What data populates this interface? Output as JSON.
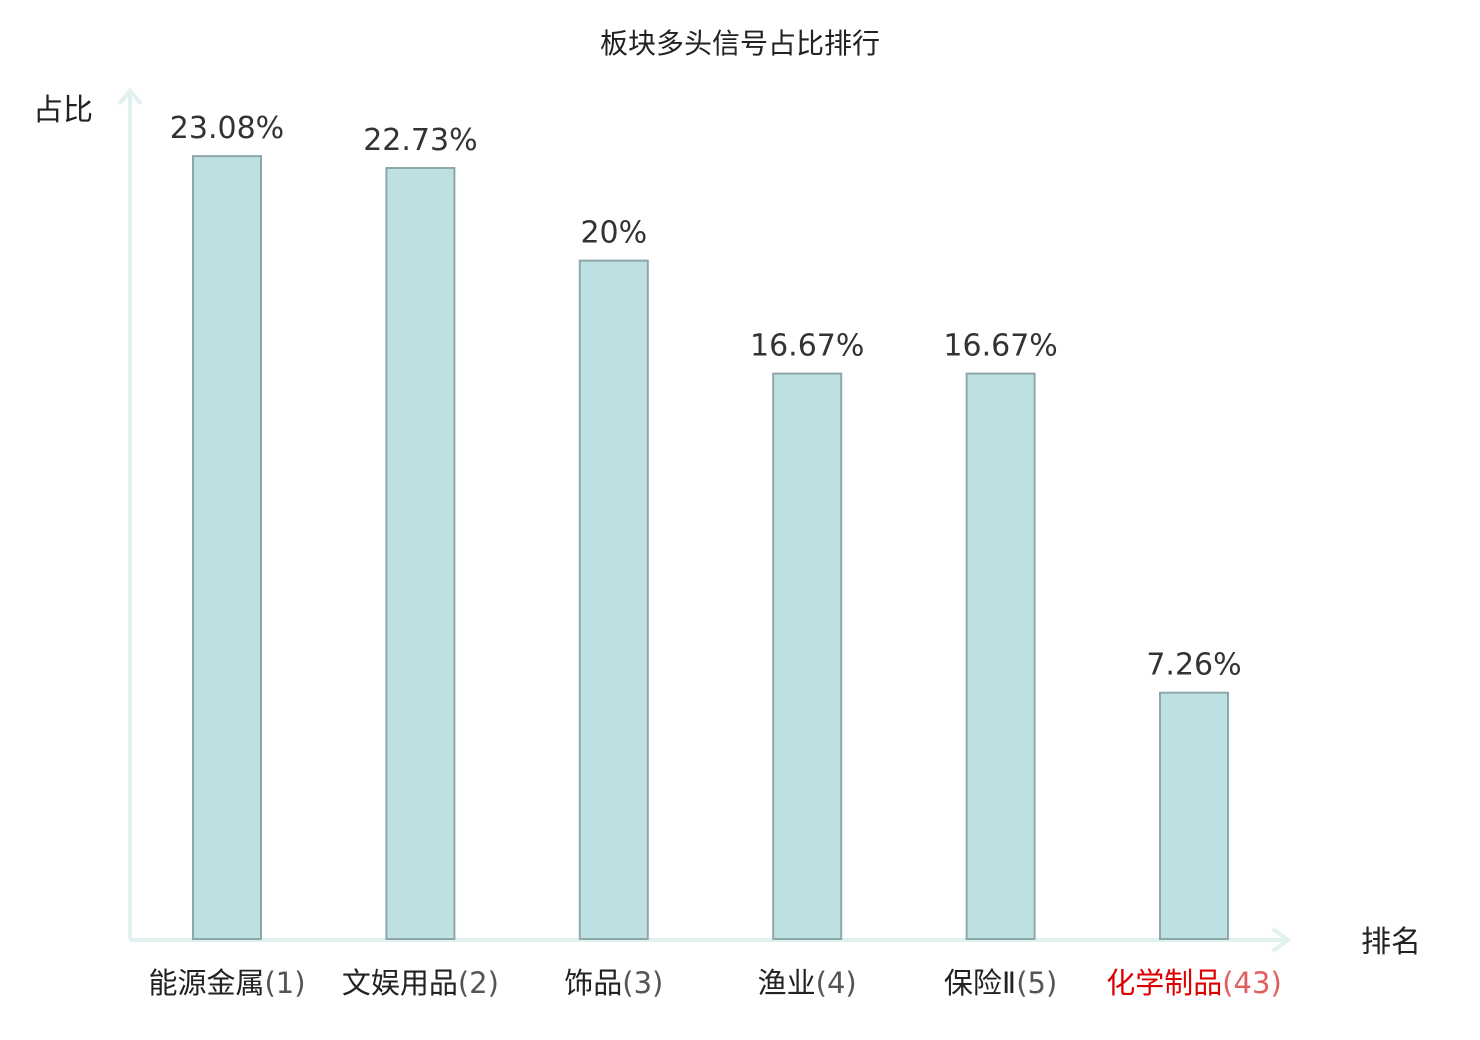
{
  "chart_data": {
    "type": "bar",
    "title": "板块多头信号占比排行",
    "xlabel": "排名",
    "ylabel": "占比",
    "categories": [
      {
        "name": "能源金属",
        "rank": "(1)",
        "highlight": false
      },
      {
        "name": "文娱用品",
        "rank": "(2)",
        "highlight": false
      },
      {
        "name": "饰品",
        "rank": "(3)",
        "highlight": false
      },
      {
        "name": "渔业",
        "rank": "(4)",
        "highlight": false
      },
      {
        "name": "保险Ⅱ",
        "rank": "(5)",
        "highlight": false
      },
      {
        "name": "化学制品",
        "rank": "(43)",
        "highlight": true
      }
    ],
    "values": [
      23.08,
      22.73,
      20,
      16.67,
      16.67,
      7.26
    ],
    "value_labels": [
      "23.08%",
      "22.73%",
      "20%",
      "16.67%",
      "16.67%",
      "7.26%"
    ],
    "ylim": [
      0,
      25
    ],
    "grid": false,
    "legend": "none"
  },
  "colors": {
    "bar_fill": "#bde0e2",
    "bar_stroke": "#8ea8aa",
    "axis": "#dff2ef",
    "text": "#222222",
    "highlight_name": "#dd0000",
    "highlight_rank": "#e06060",
    "rank_text": "#555555"
  }
}
